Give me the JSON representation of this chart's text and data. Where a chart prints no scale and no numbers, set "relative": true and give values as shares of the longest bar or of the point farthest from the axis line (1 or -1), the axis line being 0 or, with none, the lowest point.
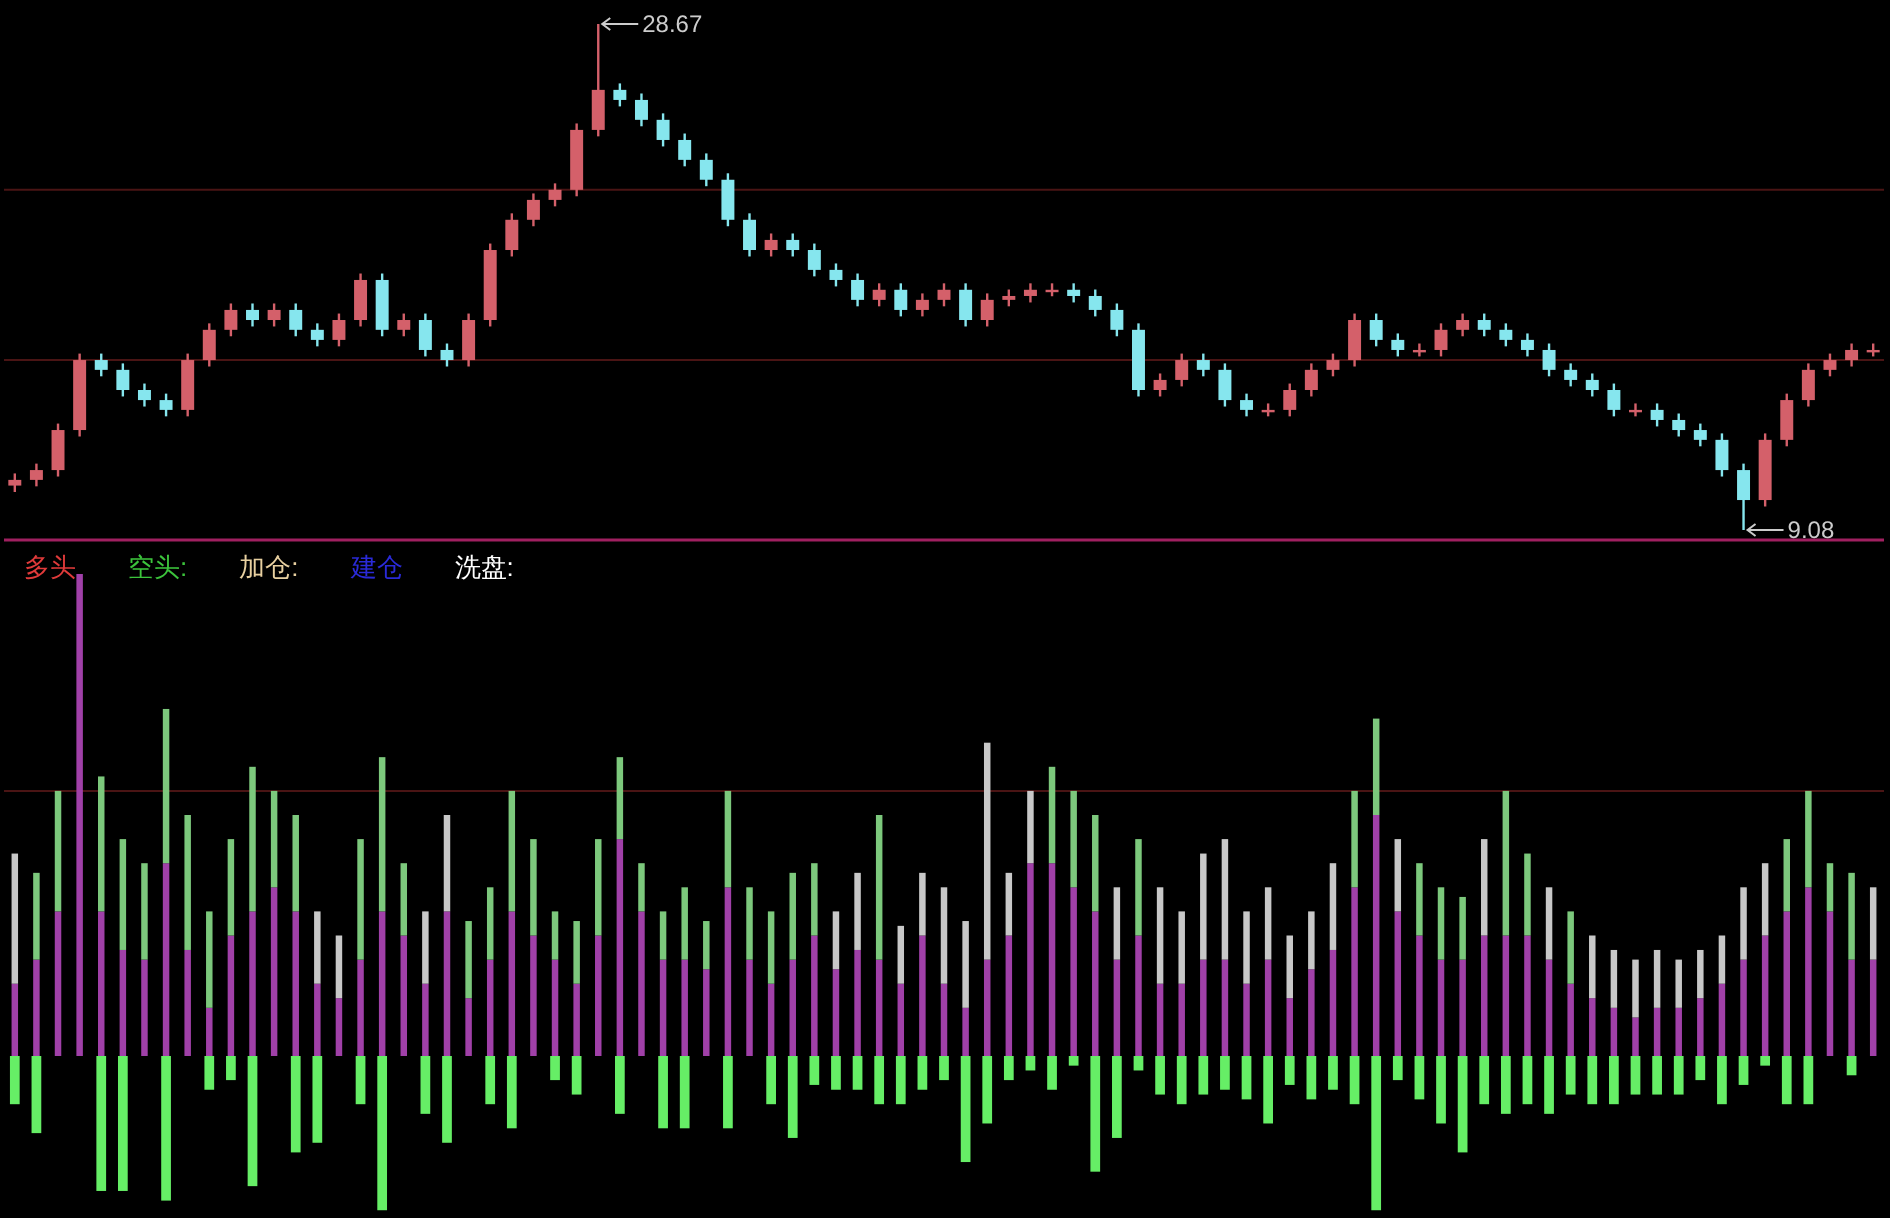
{
  "chart_data": [
    {
      "type": "candlestick",
      "colors": [
        "#d4606a",
        "#d4606a",
        "#d4606a",
        "#d4606a",
        "#86e6ee",
        "#86e6ee",
        "#86e6ee",
        "#86e6ee",
        "#d4606a",
        "#d4606a",
        "#d4606a",
        "#86e6ee",
        "#d4606a",
        "#86e6ee",
        "#86e6ee",
        "#d4606a",
        "#d4606a",
        "#86e6ee",
        "#d4606a",
        "#86e6ee",
        "#86e6ee",
        "#d4606a",
        "#d4606a",
        "#d4606a",
        "#d4606a",
        "#d4606a",
        "#d4606a",
        "#d4606a",
        "#86e6ee",
        "#86e6ee",
        "#86e6ee",
        "#86e6ee",
        "#86e6ee",
        "#86e6ee",
        "#86e6ee",
        "#d4606a",
        "#86e6ee",
        "#86e6ee",
        "#86e6ee",
        "#86e6ee",
        "#d4606a",
        "#86e6ee",
        "#d4606a",
        "#d4606a",
        "#86e6ee",
        "#d4606a",
        "#d4606a",
        "#d4606a",
        "#d4606a",
        "#86e6ee",
        "#86e6ee",
        "#86e6ee",
        "#86e6ee",
        "#d4606a",
        "#d4606a",
        "#86e6ee",
        "#86e6ee",
        "#86e6ee",
        "#d4606a",
        "#d4606a",
        "#d4606a",
        "#d4606a",
        "#d4606a",
        "#86e6ee",
        "#86e6ee",
        "#d4606a",
        "#d4606a",
        "#d4606a",
        "#86e6ee",
        "#86e6ee",
        "#86e6ee",
        "#86e6ee",
        "#86e6ee",
        "#86e6ee",
        "#86e6ee",
        "#d4606a",
        "#86e6ee",
        "#86e6ee",
        "#86e6ee",
        "#86e6ee",
        "#86e6ee",
        "#d4606a",
        "#d4606a",
        "#d4606a",
        "#d4606a",
        "#d4606a",
        "#d4606a"
      ],
      "categories": [
        null,
        null,
        null,
        null,
        null,
        null,
        null,
        null,
        null,
        null,
        null,
        null,
        null,
        null,
        null,
        null,
        null,
        null,
        null,
        null,
        null,
        null,
        null,
        null,
        null,
        null,
        null,
        null,
        null,
        null,
        null,
        null,
        null,
        null,
        null,
        null,
        null,
        null,
        null,
        null,
        null,
        null,
        null,
        null,
        null,
        null,
        null,
        null,
        null,
        null,
        null,
        null,
        null,
        null,
        null,
        null,
        null,
        null,
        null,
        null,
        null,
        null,
        null,
        null,
        null,
        null,
        null,
        null,
        null,
        null,
        null,
        null,
        null,
        null,
        null,
        null,
        null,
        null,
        null,
        null,
        null,
        null,
        null,
        null,
        null,
        null,
        null
      ],
      "ohlc": [
        [
          10.8,
          11.27,
          10.55,
          11.02
        ],
        [
          11.02,
          11.65,
          10.77,
          11.4
        ],
        [
          11.4,
          13.2,
          11.15,
          12.95
        ],
        [
          12.95,
          15.91,
          12.7,
          15.66
        ],
        [
          15.66,
          15.91,
          15.03,
          15.28
        ],
        [
          15.28,
          15.53,
          14.25,
          14.5
        ],
        [
          14.5,
          14.75,
          13.86,
          14.11
        ],
        [
          14.11,
          14.36,
          13.48,
          13.73
        ],
        [
          13.73,
          15.91,
          13.48,
          15.66
        ],
        [
          15.66,
          17.08,
          15.41,
          16.83
        ],
        [
          16.83,
          17.85,
          16.58,
          17.6
        ],
        [
          17.6,
          17.85,
          16.96,
          17.21
        ],
        [
          17.21,
          17.85,
          16.96,
          17.6
        ],
        [
          17.6,
          17.85,
          16.58,
          16.83
        ],
        [
          16.83,
          17.08,
          16.19,
          16.44
        ],
        [
          16.44,
          17.46,
          16.19,
          17.21
        ],
        [
          17.21,
          19.01,
          16.96,
          18.76
        ],
        [
          18.76,
          19.01,
          16.58,
          16.83
        ],
        [
          16.83,
          17.46,
          16.58,
          17.21
        ],
        [
          17.21,
          17.46,
          15.8,
          16.05
        ],
        [
          16.05,
          16.3,
          15.41,
          15.66
        ],
        [
          15.66,
          17.46,
          15.41,
          17.21
        ],
        [
          17.21,
          20.17,
          16.96,
          19.92
        ],
        [
          19.92,
          21.34,
          19.67,
          21.09
        ],
        [
          21.09,
          22.11,
          20.84,
          21.86
        ],
        [
          21.86,
          22.5,
          21.61,
          22.25
        ],
        [
          22.25,
          24.82,
          22.0,
          24.57
        ],
        [
          24.57,
          28.67,
          24.32,
          26.12
        ],
        [
          26.12,
          26.37,
          25.48,
          25.73
        ],
        [
          25.73,
          25.98,
          24.71,
          24.96
        ],
        [
          24.96,
          25.21,
          23.93,
          24.18
        ],
        [
          24.18,
          24.43,
          23.16,
          23.41
        ],
        [
          23.41,
          23.66,
          22.39,
          22.64
        ],
        [
          22.64,
          22.89,
          20.84,
          21.09
        ],
        [
          21.09,
          21.34,
          19.67,
          19.92
        ],
        [
          19.92,
          20.56,
          19.67,
          20.31
        ],
        [
          20.31,
          20.56,
          19.67,
          19.92
        ],
        [
          19.92,
          20.17,
          18.9,
          19.15
        ],
        [
          19.15,
          19.4,
          18.51,
          18.76
        ],
        [
          18.76,
          19.01,
          17.74,
          17.99
        ],
        [
          17.99,
          18.63,
          17.74,
          18.38
        ],
        [
          18.38,
          18.63,
          17.35,
          17.6
        ],
        [
          17.6,
          18.24,
          17.35,
          17.99
        ],
        [
          17.99,
          18.63,
          17.74,
          18.38
        ],
        [
          18.38,
          18.63,
          16.96,
          17.21
        ],
        [
          17.21,
          18.24,
          16.96,
          17.99
        ],
        [
          17.99,
          18.39,
          17.74,
          18.14
        ],
        [
          18.14,
          18.63,
          17.89,
          18.38
        ],
        [
          18.38,
          18.63,
          18.13,
          18.38
        ],
        [
          18.38,
          18.63,
          17.89,
          18.14
        ],
        [
          18.14,
          18.39,
          17.35,
          17.6
        ],
        [
          17.6,
          17.85,
          16.58,
          16.83
        ],
        [
          16.83,
          17.08,
          14.25,
          14.5
        ],
        [
          14.5,
          15.14,
          14.25,
          14.89
        ],
        [
          14.89,
          15.91,
          14.64,
          15.66
        ],
        [
          15.66,
          15.91,
          15.03,
          15.28
        ],
        [
          15.28,
          15.53,
          13.86,
          14.11
        ],
        [
          14.11,
          14.36,
          13.48,
          13.73
        ],
        [
          13.73,
          13.98,
          13.48,
          13.73
        ],
        [
          13.73,
          14.75,
          13.48,
          14.5
        ],
        [
          14.5,
          15.53,
          14.25,
          15.28
        ],
        [
          15.28,
          15.91,
          15.03,
          15.66
        ],
        [
          15.66,
          17.46,
          15.41,
          17.21
        ],
        [
          17.21,
          17.46,
          16.19,
          16.44
        ],
        [
          16.44,
          16.69,
          15.8,
          16.05
        ],
        [
          16.05,
          16.3,
          15.8,
          16.05
        ],
        [
          16.05,
          17.08,
          15.8,
          16.83
        ],
        [
          16.83,
          17.46,
          16.58,
          17.21
        ],
        [
          17.21,
          17.46,
          16.58,
          16.83
        ],
        [
          16.83,
          17.08,
          16.19,
          16.44
        ],
        [
          16.44,
          16.69,
          15.8,
          16.05
        ],
        [
          16.05,
          16.3,
          15.03,
          15.28
        ],
        [
          15.28,
          15.53,
          14.64,
          14.89
        ],
        [
          14.89,
          15.14,
          14.25,
          14.5
        ],
        [
          14.5,
          14.75,
          13.48,
          13.73
        ],
        [
          13.73,
          13.98,
          13.48,
          13.73
        ],
        [
          13.73,
          13.98,
          13.09,
          13.34
        ],
        [
          13.34,
          13.59,
          12.7,
          12.95
        ],
        [
          12.95,
          13.2,
          12.32,
          12.57
        ],
        [
          12.57,
          12.82,
          11.15,
          11.4
        ],
        [
          11.4,
          11.65,
          9.08,
          10.24
        ],
        [
          10.24,
          12.82,
          9.99,
          12.57
        ],
        [
          12.57,
          14.36,
          12.32,
          14.11
        ],
        [
          14.11,
          15.53,
          13.86,
          15.28
        ],
        [
          15.28,
          15.91,
          15.03,
          15.66
        ],
        [
          15.66,
          16.3,
          15.41,
          16.05
        ],
        [
          16.05,
          16.3,
          15.8,
          16.05
        ]
      ],
      "annotations": [
        "28.67",
        "9.08"
      ],
      "ref_lines": [
        {
          "axis": "y",
          "value": 22.25,
          "color": "#4a1414"
        },
        {
          "axis": "y",
          "value": 15.66,
          "color": "#4a1414"
        }
      ]
    },
    {
      "type": "bar",
      "stacked": true,
      "relative": true,
      "categories": [
        null,
        null,
        null,
        null,
        null,
        null,
        null,
        null,
        null,
        null,
        null,
        null,
        null,
        null,
        null,
        null,
        null,
        null,
        null,
        null,
        null,
        null,
        null,
        null,
        null,
        null,
        null,
        null,
        null,
        null,
        null,
        null,
        null,
        null,
        null,
        null,
        null,
        null,
        null,
        null,
        null,
        null,
        null,
        null,
        null,
        null,
        null,
        null,
        null,
        null,
        null,
        null,
        null,
        null,
        null,
        null,
        null,
        null,
        null,
        null,
        null,
        null,
        null,
        null,
        null,
        null,
        null,
        null,
        null,
        null,
        null,
        null,
        null,
        null,
        null,
        null,
        null,
        null,
        null,
        null,
        null,
        null,
        null,
        null,
        null,
        null,
        null
      ],
      "annotations": [
        "多头",
        "空头:",
        "加仓:",
        "建仓",
        "洗盘:"
      ],
      "ref_lines": [
        {
          "axis": "y",
          "value": 0.55,
          "color": "#4a1414"
        }
      ],
      "series": [
        {
          "color": "#a040a8",
          "values": [
            0.15,
            0.2,
            0.3,
            1.0,
            0.3,
            0.22,
            0.2,
            0.4,
            0.22,
            0.1,
            0.25,
            0.3,
            0.35,
            0.3,
            0.15,
            0.12,
            0.2,
            0.3,
            0.25,
            0.15,
            0.3,
            0.12,
            0.2,
            0.3,
            0.25,
            0.2,
            0.15,
            0.25,
            0.45,
            0.3,
            0.2,
            0.2,
            0.18,
            0.35,
            0.2,
            0.15,
            0.2,
            0.25,
            0.18,
            0.22,
            0.2,
            0.15,
            0.25,
            0.15,
            0.1,
            0.2,
            0.25,
            0.4,
            0.4,
            0.35,
            0.3,
            0.2,
            0.25,
            0.15,
            0.15,
            0.2,
            0.2,
            0.15,
            0.2,
            0.12,
            0.18,
            0.22,
            0.35,
            0.5,
            0.3,
            0.25,
            0.2,
            0.2,
            0.25,
            0.25,
            0.25,
            0.2,
            0.15,
            0.12,
            0.1,
            0.08,
            0.1,
            0.1,
            0.12,
            0.15,
            0.2,
            0.25,
            0.3,
            0.35,
            0.3,
            0.2,
            0.2
          ]
        },
        {
          "color": "#7cc87c",
          "values": [
            null,
            0.18,
            0.25,
            null,
            0.28,
            0.23,
            0.2,
            0.32,
            0.28,
            0.2,
            0.2,
            0.3,
            0.2,
            0.2,
            null,
            null,
            0.25,
            0.32,
            0.15,
            null,
            null,
            0.16,
            0.15,
            0.25,
            0.2,
            0.1,
            0.13,
            0.2,
            0.17,
            0.1,
            0.1,
            0.15,
            0.1,
            0.2,
            0.15,
            0.15,
            0.18,
            0.15,
            null,
            null,
            0.3,
            null,
            null,
            null,
            null,
            null,
            null,
            null,
            0.2,
            0.2,
            0.2,
            null,
            0.2,
            null,
            null,
            null,
            null,
            null,
            null,
            null,
            null,
            null,
            0.2,
            0.2,
            null,
            0.15,
            0.15,
            0.13,
            null,
            0.3,
            0.17,
            null,
            0.15,
            null,
            null,
            null,
            null,
            null,
            null,
            null,
            null,
            null,
            0.15,
            0.2,
            0.1,
            0.18,
            null
          ]
        },
        {
          "color": "#c8c8c8",
          "values": [
            0.27,
            null,
            null,
            null,
            null,
            null,
            null,
            null,
            null,
            null,
            null,
            null,
            null,
            null,
            0.15,
            0.13,
            null,
            null,
            null,
            0.15,
            0.2,
            null,
            null,
            null,
            null,
            null,
            null,
            null,
            null,
            null,
            null,
            null,
            null,
            null,
            null,
            null,
            null,
            null,
            0.12,
            0.16,
            null,
            0.12,
            0.13,
            0.2,
            0.18,
            0.45,
            0.13,
            0.15,
            null,
            null,
            null,
            0.15,
            null,
            0.2,
            0.15,
            0.22,
            0.25,
            0.15,
            0.15,
            0.13,
            0.12,
            0.18,
            null,
            null,
            0.15,
            null,
            null,
            null,
            0.2,
            null,
            null,
            0.15,
            null,
            0.13,
            0.12,
            0.12,
            0.12,
            0.1,
            0.1,
            0.1,
            0.15,
            0.15,
            null,
            null,
            null,
            null,
            0.15
          ]
        },
        {
          "color": "#66ee66",
          "values": [
            -0.1,
            -0.16,
            null,
            null,
            -0.28,
            -0.28,
            null,
            -0.3,
            null,
            -0.07,
            -0.05,
            -0.27,
            null,
            -0.2,
            -0.18,
            null,
            -0.1,
            -0.32,
            null,
            -0.12,
            -0.18,
            null,
            -0.1,
            -0.15,
            null,
            -0.05,
            -0.08,
            null,
            -0.12,
            null,
            -0.15,
            -0.15,
            null,
            -0.15,
            null,
            -0.1,
            -0.17,
            -0.06,
            -0.07,
            -0.07,
            -0.1,
            -0.1,
            -0.07,
            -0.05,
            -0.22,
            -0.14,
            -0.05,
            -0.03,
            -0.07,
            -0.02,
            -0.24,
            -0.17,
            -0.03,
            -0.08,
            -0.1,
            -0.08,
            -0.07,
            -0.09,
            -0.14,
            -0.06,
            -0.09,
            -0.07,
            -0.1,
            -0.32,
            -0.05,
            -0.09,
            -0.14,
            -0.2,
            -0.1,
            -0.12,
            -0.1,
            -0.12,
            -0.08,
            -0.1,
            -0.1,
            -0.08,
            -0.08,
            -0.08,
            -0.05,
            -0.1,
            -0.06,
            -0.02,
            -0.1,
            -0.1,
            null,
            -0.04,
            null
          ]
        }
      ]
    }
  ]
}
